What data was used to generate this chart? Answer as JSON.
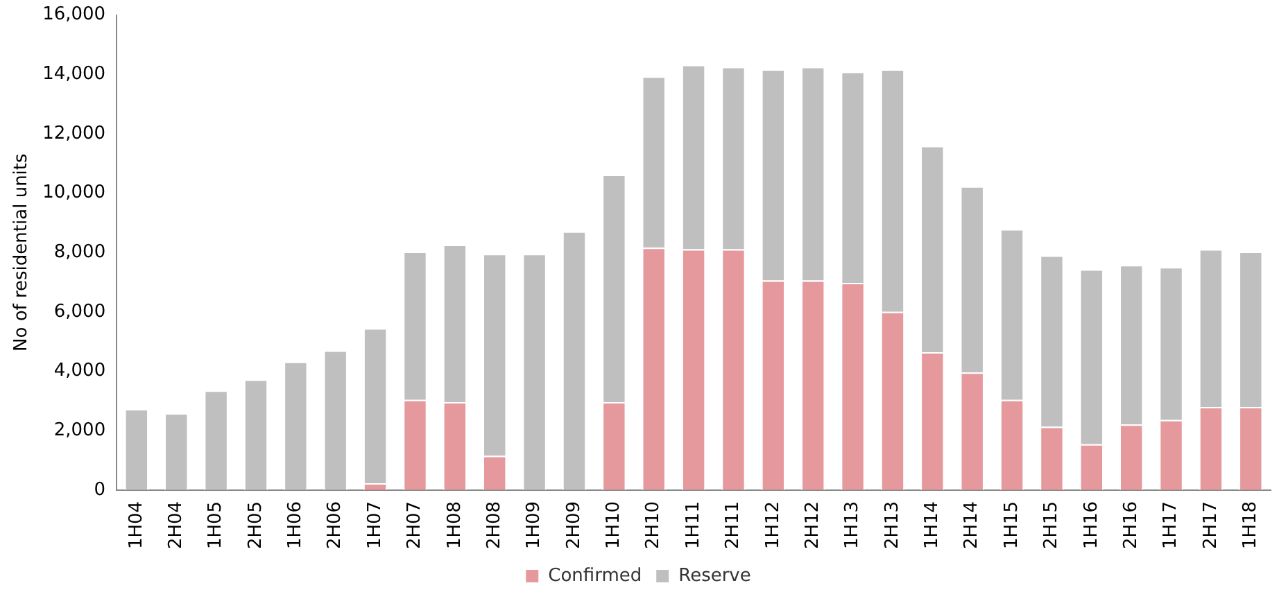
{
  "chart_data": {
    "type": "bar",
    "ylabel": "No of residential units",
    "categories": [
      "1H04",
      "2H04",
      "1H05",
      "2H05",
      "1H06",
      "2H06",
      "1H07",
      "2H07",
      "1H08",
      "2H08",
      "1H09",
      "2H09",
      "1H10",
      "2H10",
      "1H11",
      "2H11",
      "1H12",
      "2H12",
      "1H13",
      "2H13",
      "1H14",
      "2H14",
      "1H15",
      "2H15",
      "1H16",
      "2H16",
      "1H17",
      "2H17",
      "1H18"
    ],
    "series": [
      {
        "name": "Confirmed",
        "color": "#e5999c",
        "values": [
          0,
          0,
          0,
          0,
          0,
          0,
          230,
          3040,
          2960,
          1150,
          0,
          0,
          2960,
          8160,
          8110,
          8110,
          7060,
          7060,
          6980,
          6000,
          4640,
          3960,
          3040,
          2130,
          1540,
          2210,
          2360,
          2800,
          2800
        ]
      },
      {
        "name": "Reserve",
        "color": "#bfbfbf",
        "values": [
          2730,
          2590,
          3350,
          3720,
          4320,
          4700,
          5220,
          4990,
          5300,
          6800,
          7950,
          8710,
          7660,
          5770,
          6210,
          6140,
          7110,
          7190,
          7110,
          8170,
          6950,
          6270,
          5750,
          5770,
          5890,
          5370,
          5150,
          5310,
          5230
        ]
      }
    ],
    "stacked": true,
    "ylim": [
      0,
      16000
    ],
    "yticks": [
      0,
      {
        "value": 2000,
        "label": "2,000"
      },
      {
        "value": 4000,
        "label": "4,000"
      },
      {
        "value": 6000,
        "label": "6,000"
      },
      {
        "value": 8000,
        "label": "8,000"
      },
      {
        "value": 10000,
        "label": "10,000"
      },
      {
        "value": 12000,
        "label": "12,000"
      },
      {
        "value": 14000,
        "label": "14,000"
      },
      {
        "value": 16000,
        "label": "16,000"
      }
    ],
    "grid": false,
    "legend": "bottom"
  }
}
